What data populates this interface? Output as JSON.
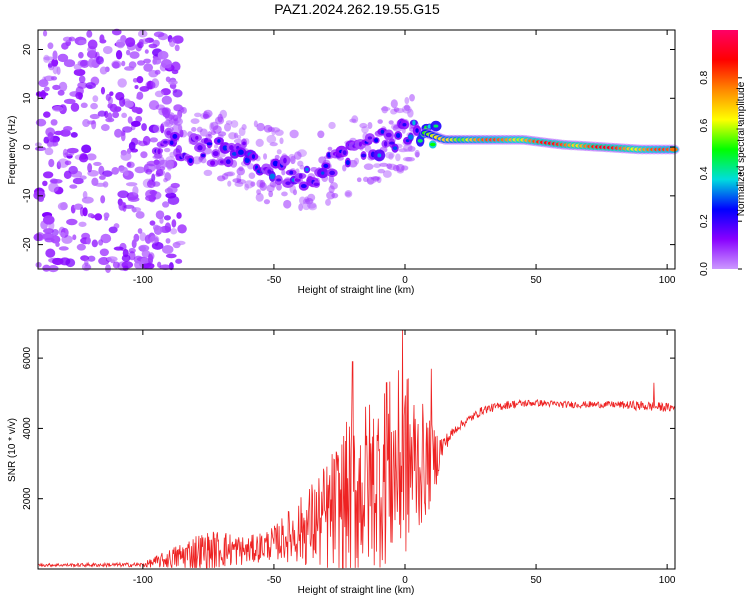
{
  "figure_title": "PAZ1.2024.262.19.55.G15",
  "chart_data": [
    {
      "type": "heatmap",
      "title": "PAZ1.2024.262.19.55.G15",
      "xlabel": "Height of straight line (km)",
      "ylabel": "Frequency (Hz)",
      "xlim": [
        -140,
        103
      ],
      "ylim": [
        -25,
        24
      ],
      "x_ticks": [
        -100,
        -50,
        0,
        50,
        100
      ],
      "y_ticks": [
        -20,
        -10,
        0,
        10,
        20
      ],
      "colorbar": {
        "label": "Normalized spectral amplitude",
        "range": [
          0,
          1
        ],
        "ticks": [
          0.0,
          0.2,
          0.4,
          0.6,
          0.8
        ],
        "colormap": [
          "#cc99ff",
          "#8800ff",
          "#0000ff",
          "#00dddd",
          "#00ff00",
          "#ffff00",
          "#ff8800",
          "#ff0000",
          "#ff0066"
        ]
      },
      "ridge": {
        "x": [
          -95,
          -85,
          -75,
          -65,
          -55,
          -45,
          -35,
          -25,
          -15,
          -5,
          5,
          15,
          30,
          45,
          60,
          75,
          90,
          103
        ],
        "freq": [
          1,
          0,
          -1,
          -0.5,
          -3,
          -5,
          -6,
          -2,
          -1,
          2,
          3.5,
          1.5,
          1.5,
          1.5,
          0.5,
          0.0,
          -0.5,
          -0.5
        ],
        "amplitude": [
          0.15,
          0.2,
          0.2,
          0.25,
          0.25,
          0.25,
          0.25,
          0.2,
          0.25,
          0.3,
          0.45,
          0.7,
          0.8,
          0.85,
          0.88,
          0.9,
          0.85,
          0.8
        ]
      },
      "grid": false
    },
    {
      "type": "line",
      "xlabel": "Height of straight line (km)",
      "ylabel": "SNR (10 * v/v)",
      "xlim": [
        -140,
        103
      ],
      "ylim": [
        0,
        6800
      ],
      "x_ticks": [
        -100,
        -50,
        0,
        50,
        100
      ],
      "y_ticks": [
        2000,
        4000,
        6000
      ],
      "color": "#ee2222",
      "envelope": {
        "x": [
          -140,
          -100,
          -90,
          -80,
          -70,
          -60,
          -50,
          -40,
          -30,
          -20,
          -10,
          0,
          10,
          15,
          20,
          30,
          40,
          50,
          60,
          70,
          80,
          90,
          103
        ],
        "base": [
          100,
          100,
          200,
          300,
          400,
          400,
          600,
          800,
          1000,
          1400,
          1800,
          2200,
          2600,
          3500,
          4000,
          4500,
          4650,
          4700,
          4650,
          4650,
          4650,
          4600,
          4550
        ],
        "spike_amplitude": [
          50,
          80,
          350,
          700,
          700,
          500,
          600,
          1200,
          2000,
          3000,
          3200,
          3500,
          1500,
          300,
          150,
          150,
          150,
          120,
          120,
          120,
          120,
          180,
          150
        ]
      },
      "peaks": [
        {
          "x": -20,
          "y": 5900
        },
        {
          "x": -7,
          "y": 5300
        },
        {
          "x": -1,
          "y": 6800
        },
        {
          "x": 10,
          "y": 5700
        },
        {
          "x": 95,
          "y": 5300
        }
      ],
      "grid": false
    }
  ]
}
